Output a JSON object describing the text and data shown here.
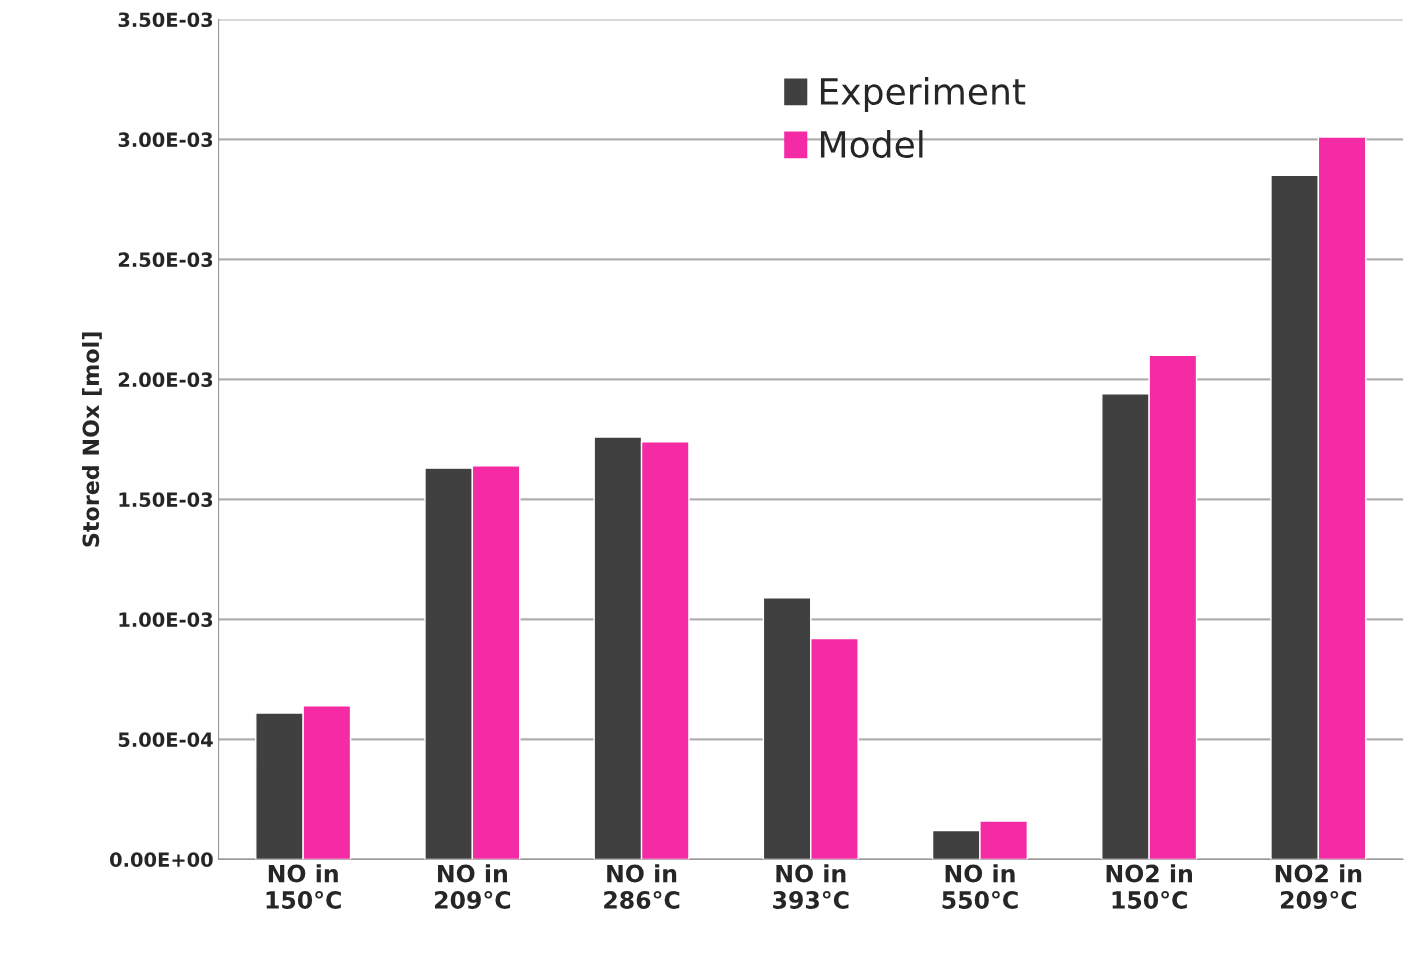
{
  "chart_data": {
    "type": "bar",
    "ylabel": "Stored NOx [mol]",
    "categories": [
      "NO in\n150°C",
      "NO in\n209°C",
      "NO in\n286°C",
      "NO in\n393°C",
      "NO in\n550°C",
      "NO2 in\n150°C",
      "NO2 in\n209°C"
    ],
    "series": [
      {
        "name": "Experiment",
        "color": "#404040",
        "values": [
          0.00061,
          0.00163,
          0.00176,
          0.00109,
          0.00012,
          0.00194,
          0.00285
        ]
      },
      {
        "name": "Model",
        "color": "#f52aa5",
        "values": [
          0.00064,
          0.00164,
          0.00174,
          0.00092,
          0.00016,
          0.0021,
          0.00301
        ]
      }
    ],
    "ylim": [
      0,
      0.0035
    ],
    "yticks": [
      {
        "value": 0,
        "label": "0.00E+00"
      },
      {
        "value": 0.0005,
        "label": "5.00E-04"
      },
      {
        "value": 0.001,
        "label": "1.00E-03"
      },
      {
        "value": 0.0015,
        "label": "1.50E-03"
      },
      {
        "value": 0.002,
        "label": "2.00E-03"
      },
      {
        "value": 0.0025,
        "label": "2.50E-03"
      },
      {
        "value": 0.003,
        "label": "3.00E-03"
      },
      {
        "value": 0.0035,
        "label": "3.50E-03"
      }
    ],
    "grid": "y",
    "legend": "top"
  }
}
